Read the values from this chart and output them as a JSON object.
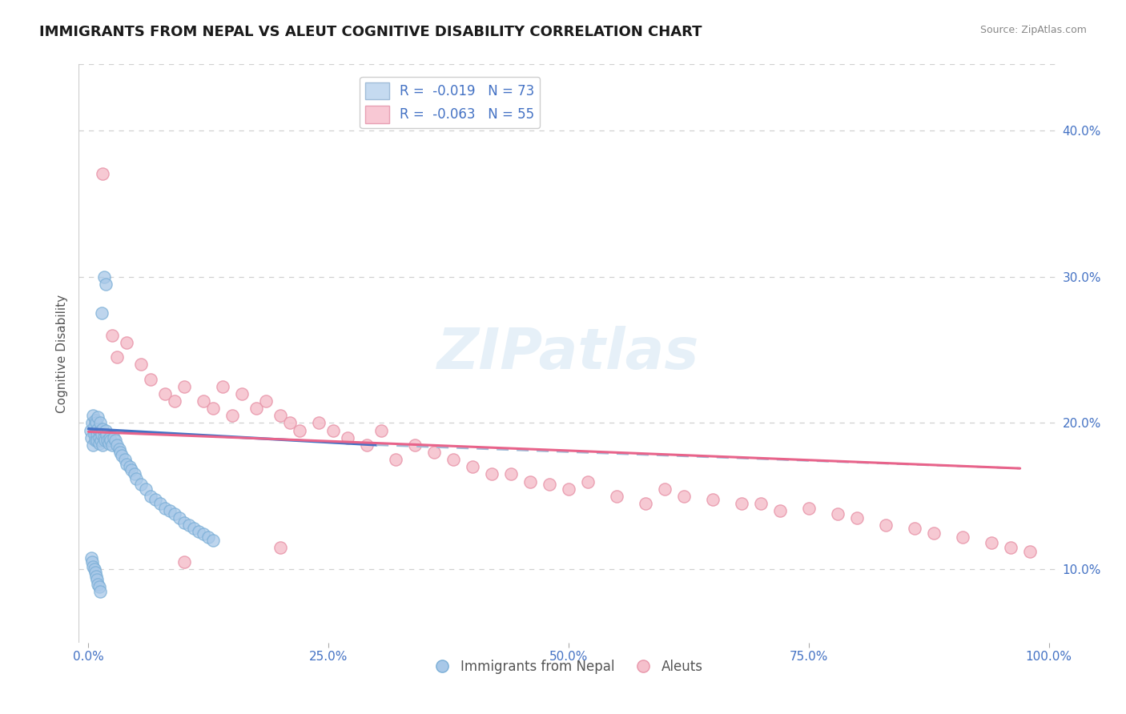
{
  "title": "IMMIGRANTS FROM NEPAL VS ALEUT COGNITIVE DISABILITY CORRELATION CHART",
  "source": "Source: ZipAtlas.com",
  "ylabel": "Cognitive Disability",
  "xlim": [
    -0.01,
    1.01
  ],
  "ylim": [
    0.05,
    0.445
  ],
  "yticks": [
    0.1,
    0.2,
    0.3,
    0.4
  ],
  "yticklabels": [
    "10.0%",
    "20.0%",
    "30.0%",
    "40.0%"
  ],
  "xticks": [
    0.0,
    0.25,
    0.5,
    0.75,
    1.0
  ],
  "xticklabels": [
    "0.0%",
    "25.0%",
    "50.0%",
    "75.0%",
    "100.0%"
  ],
  "nepal_color_face": "#a8c8e8",
  "nepal_color_edge": "#7aaed6",
  "aleuts_color_face": "#f5c0cc",
  "aleuts_color_edge": "#e896aa",
  "nepal_line_color": "#4472C4",
  "aleuts_line_color": "#E8638A",
  "dashed_line_color": "#a0bcd8",
  "grid_color": "#d0d0d0",
  "background_color": "#ffffff",
  "watermark": "ZIPatlas",
  "title_color": "#1a1a1a",
  "axis_label_color": "#4472C4",
  "nepal_scatter_x": [
    0.002,
    0.003,
    0.004,
    0.005,
    0.005,
    0.006,
    0.006,
    0.007,
    0.007,
    0.008,
    0.008,
    0.009,
    0.009,
    0.01,
    0.01,
    0.011,
    0.011,
    0.012,
    0.012,
    0.013,
    0.014,
    0.015,
    0.015,
    0.016,
    0.017,
    0.018,
    0.019,
    0.02,
    0.021,
    0.022,
    0.023,
    0.025,
    0.026,
    0.028,
    0.03,
    0.032,
    0.033,
    0.035,
    0.038,
    0.04,
    0.043,
    0.045,
    0.048,
    0.05,
    0.055,
    0.06,
    0.065,
    0.07,
    0.075,
    0.08,
    0.085,
    0.09,
    0.095,
    0.1,
    0.105,
    0.11,
    0.115,
    0.12,
    0.125,
    0.13,
    0.003,
    0.004,
    0.005,
    0.006,
    0.007,
    0.008,
    0.009,
    0.01,
    0.011,
    0.012,
    0.014,
    0.016,
    0.018
  ],
  "nepal_scatter_y": [
    0.195,
    0.19,
    0.2,
    0.185,
    0.205,
    0.192,
    0.198,
    0.188,
    0.202,
    0.195,
    0.2,
    0.192,
    0.188,
    0.196,
    0.204,
    0.19,
    0.186,
    0.195,
    0.2,
    0.188,
    0.192,
    0.196,
    0.185,
    0.19,
    0.188,
    0.195,
    0.192,
    0.188,
    0.186,
    0.19,
    0.188,
    0.185,
    0.19,
    0.188,
    0.185,
    0.182,
    0.18,
    0.178,
    0.175,
    0.172,
    0.17,
    0.168,
    0.165,
    0.162,
    0.158,
    0.155,
    0.15,
    0.148,
    0.145,
    0.142,
    0.14,
    0.138,
    0.135,
    0.132,
    0.13,
    0.128,
    0.126,
    0.124,
    0.122,
    0.12,
    0.108,
    0.105,
    0.102,
    0.1,
    0.098,
    0.095,
    0.093,
    0.09,
    0.088,
    0.085,
    0.275,
    0.3,
    0.295
  ],
  "aleuts_scatter_x": [
    0.015,
    0.025,
    0.03,
    0.04,
    0.055,
    0.065,
    0.08,
    0.09,
    0.1,
    0.12,
    0.13,
    0.14,
    0.15,
    0.16,
    0.175,
    0.185,
    0.2,
    0.21,
    0.22,
    0.24,
    0.255,
    0.27,
    0.29,
    0.305,
    0.32,
    0.34,
    0.36,
    0.38,
    0.4,
    0.42,
    0.44,
    0.46,
    0.48,
    0.5,
    0.52,
    0.55,
    0.58,
    0.6,
    0.62,
    0.65,
    0.68,
    0.7,
    0.72,
    0.75,
    0.78,
    0.8,
    0.83,
    0.86,
    0.88,
    0.91,
    0.94,
    0.96,
    0.98,
    0.1,
    0.2
  ],
  "aleuts_scatter_y": [
    0.37,
    0.26,
    0.245,
    0.255,
    0.24,
    0.23,
    0.22,
    0.215,
    0.225,
    0.215,
    0.21,
    0.225,
    0.205,
    0.22,
    0.21,
    0.215,
    0.205,
    0.2,
    0.195,
    0.2,
    0.195,
    0.19,
    0.185,
    0.195,
    0.175,
    0.185,
    0.18,
    0.175,
    0.17,
    0.165,
    0.165,
    0.16,
    0.158,
    0.155,
    0.16,
    0.15,
    0.145,
    0.155,
    0.15,
    0.148,
    0.145,
    0.145,
    0.14,
    0.142,
    0.138,
    0.135,
    0.13,
    0.128,
    0.125,
    0.122,
    0.118,
    0.115,
    0.112,
    0.105,
    0.115
  ],
  "nepal_solid_line": {
    "x0": 0.0,
    "x1": 0.3,
    "y0": 0.196,
    "y1": 0.185
  },
  "nepal_dashed_line": {
    "x0": 0.3,
    "x1": 0.97,
    "y0": 0.185,
    "y1": 0.169
  },
  "aleuts_solid_line": {
    "x0": 0.0,
    "x1": 0.97,
    "y0": 0.194,
    "y1": 0.169
  },
  "legend_title_color": "#4472C4",
  "scatter_size": 120
}
